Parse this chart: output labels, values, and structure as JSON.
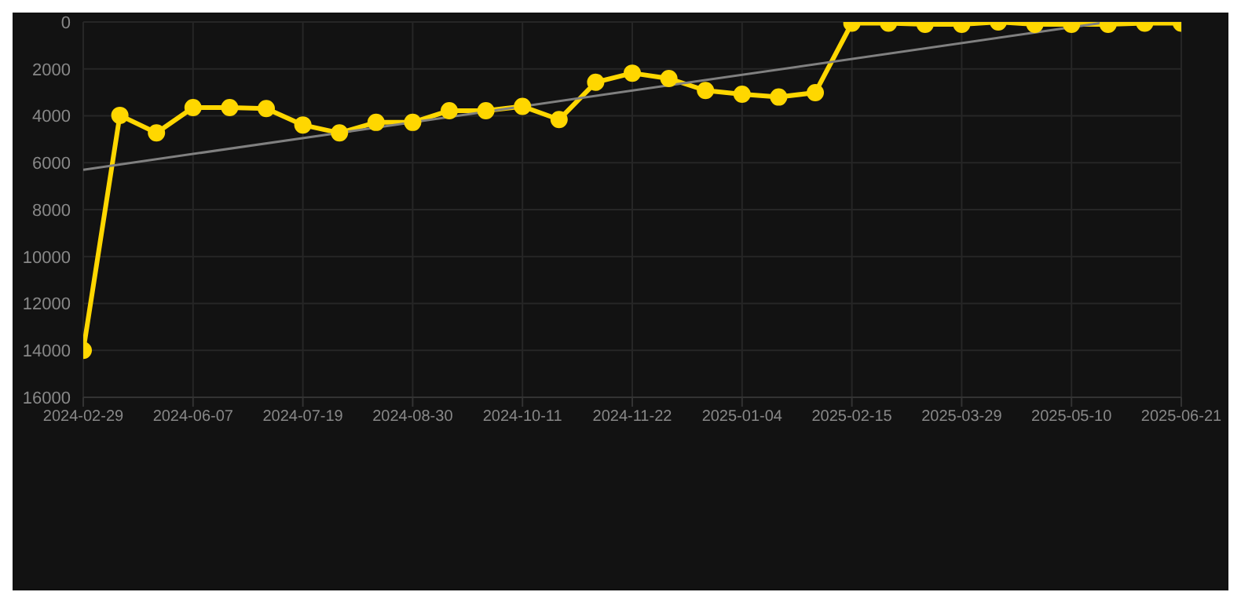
{
  "chart_data": {
    "type": "line",
    "categories": [
      "2024-02-29",
      null,
      null,
      "2024-06-07",
      null,
      null,
      "2024-07-19",
      null,
      null,
      "2024-08-30",
      null,
      null,
      "2024-10-11",
      null,
      null,
      "2024-11-22",
      null,
      null,
      "2025-01-04",
      null,
      null,
      "2025-02-15",
      null,
      null,
      "2025-03-29",
      null,
      null,
      "2025-05-10",
      null,
      null,
      "2025-06-21"
    ],
    "series": [
      {
        "color": "#ffd700",
        "marker": "circle",
        "values": [
          14000,
          3980,
          4730,
          3650,
          3650,
          3690,
          4390,
          4730,
          4280,
          4280,
          3780,
          3780,
          3600,
          4160,
          2570,
          2180,
          2410,
          2920,
          3080,
          3200,
          3010,
          50,
          50,
          100,
          100,
          0,
          100,
          100,
          100,
          50,
          50
        ]
      },
      {
        "type": "line",
        "color": "#808080",
        "marker": "none",
        "values": [
          6300,
          null,
          null,
          null,
          null,
          null,
          null,
          null,
          null,
          null,
          null,
          null,
          null,
          null,
          null,
          null,
          null,
          null,
          null,
          null,
          null,
          null,
          null,
          null,
          null,
          null,
          null,
          null,
          0,
          null,
          null
        ]
      }
    ],
    "ylim": [
      16000,
      0
    ],
    "yticks": [
      0,
      2000,
      4000,
      6000,
      8000,
      10000,
      12000,
      14000,
      16000
    ],
    "grid": true
  }
}
